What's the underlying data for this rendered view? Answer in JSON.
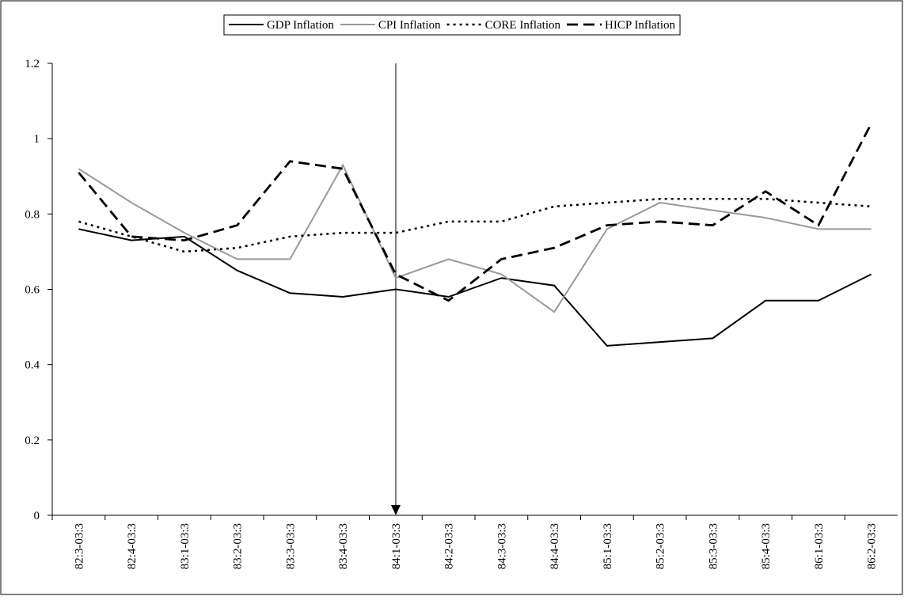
{
  "chart_data": {
    "type": "line",
    "categories": [
      "82:3-03:3",
      "82:4-03:3",
      "83:1-03:3",
      "83:2-03:3",
      "83:3-03:3",
      "83:4-03:3",
      "84:1-03:3",
      "84:2-03:3",
      "84:3-03:3",
      "84:4-03:3",
      "85:1-03:3",
      "85:2-03:3",
      "85:3-03:3",
      "85:4-03:3",
      "86:1-03:3",
      "86:2-03:3"
    ],
    "series": [
      {
        "name": "GDP Inflation",
        "color": "#000000",
        "dash": "solid",
        "values": [
          0.76,
          0.73,
          0.74,
          0.65,
          0.59,
          0.58,
          0.6,
          0.58,
          0.63,
          0.61,
          0.45,
          0.46,
          0.47,
          0.57,
          0.57,
          0.64
        ]
      },
      {
        "name": "CPI Inflation",
        "color": "#999999",
        "dash": "solid",
        "values": [
          0.92,
          0.83,
          0.75,
          0.68,
          0.68,
          0.93,
          0.63,
          0.68,
          0.64,
          0.54,
          0.76,
          0.83,
          0.81,
          0.79,
          0.76,
          0.76
        ]
      },
      {
        "name": "CORE Inflation",
        "color": "#000000",
        "dash": "dotted",
        "values": [
          0.78,
          0.74,
          0.7,
          0.71,
          0.74,
          0.75,
          0.75,
          0.78,
          0.78,
          0.82,
          0.83,
          0.84,
          0.84,
          0.84,
          0.83,
          0.82
        ]
      },
      {
        "name": "HICP Inflation",
        "color": "#000000",
        "dash": "dashed",
        "values": [
          0.91,
          0.74,
          0.73,
          0.77,
          0.94,
          0.92,
          0.64,
          0.57,
          0.68,
          0.71,
          0.77,
          0.78,
          0.77,
          0.86,
          0.77,
          1.04
        ]
      }
    ],
    "ylim": [
      0,
      1.2
    ],
    "yticks": [
      0,
      0.2,
      0.4,
      0.6,
      0.8,
      1,
      1.2
    ],
    "legend": "top"
  }
}
